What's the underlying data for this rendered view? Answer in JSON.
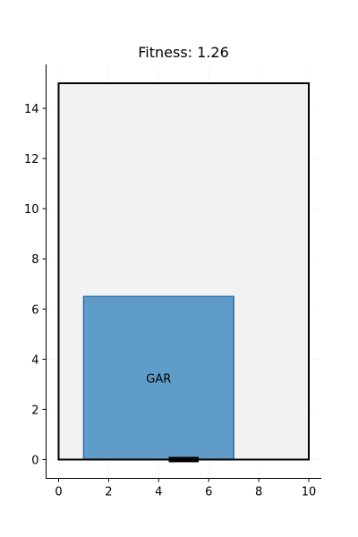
{
  "chart_data": {
    "type": "diagram",
    "title": "Fitness: 1.26",
    "xlim": [
      -0.5,
      10.5
    ],
    "ylim": [
      -0.75,
      15.75
    ],
    "x_ticks": [
      0,
      2,
      4,
      6,
      8,
      10
    ],
    "y_ticks": [
      0,
      2,
      4,
      6,
      8,
      10,
      12,
      14
    ],
    "grid": true,
    "plot": {
      "x0": 0,
      "y0": 0,
      "x1": 10,
      "y1": 15,
      "fill": "#f2f2f2",
      "stroke": "#000000"
    },
    "rooms": [
      {
        "label": "GAR",
        "x0": 1,
        "y0": 0,
        "x1": 7,
        "y1": 6.5,
        "fill": "#5f9cc9",
        "stroke": "#2f6fa8"
      }
    ],
    "door": {
      "x0": 4.4,
      "x1": 5.6,
      "y": 0,
      "color": "#000000"
    }
  }
}
